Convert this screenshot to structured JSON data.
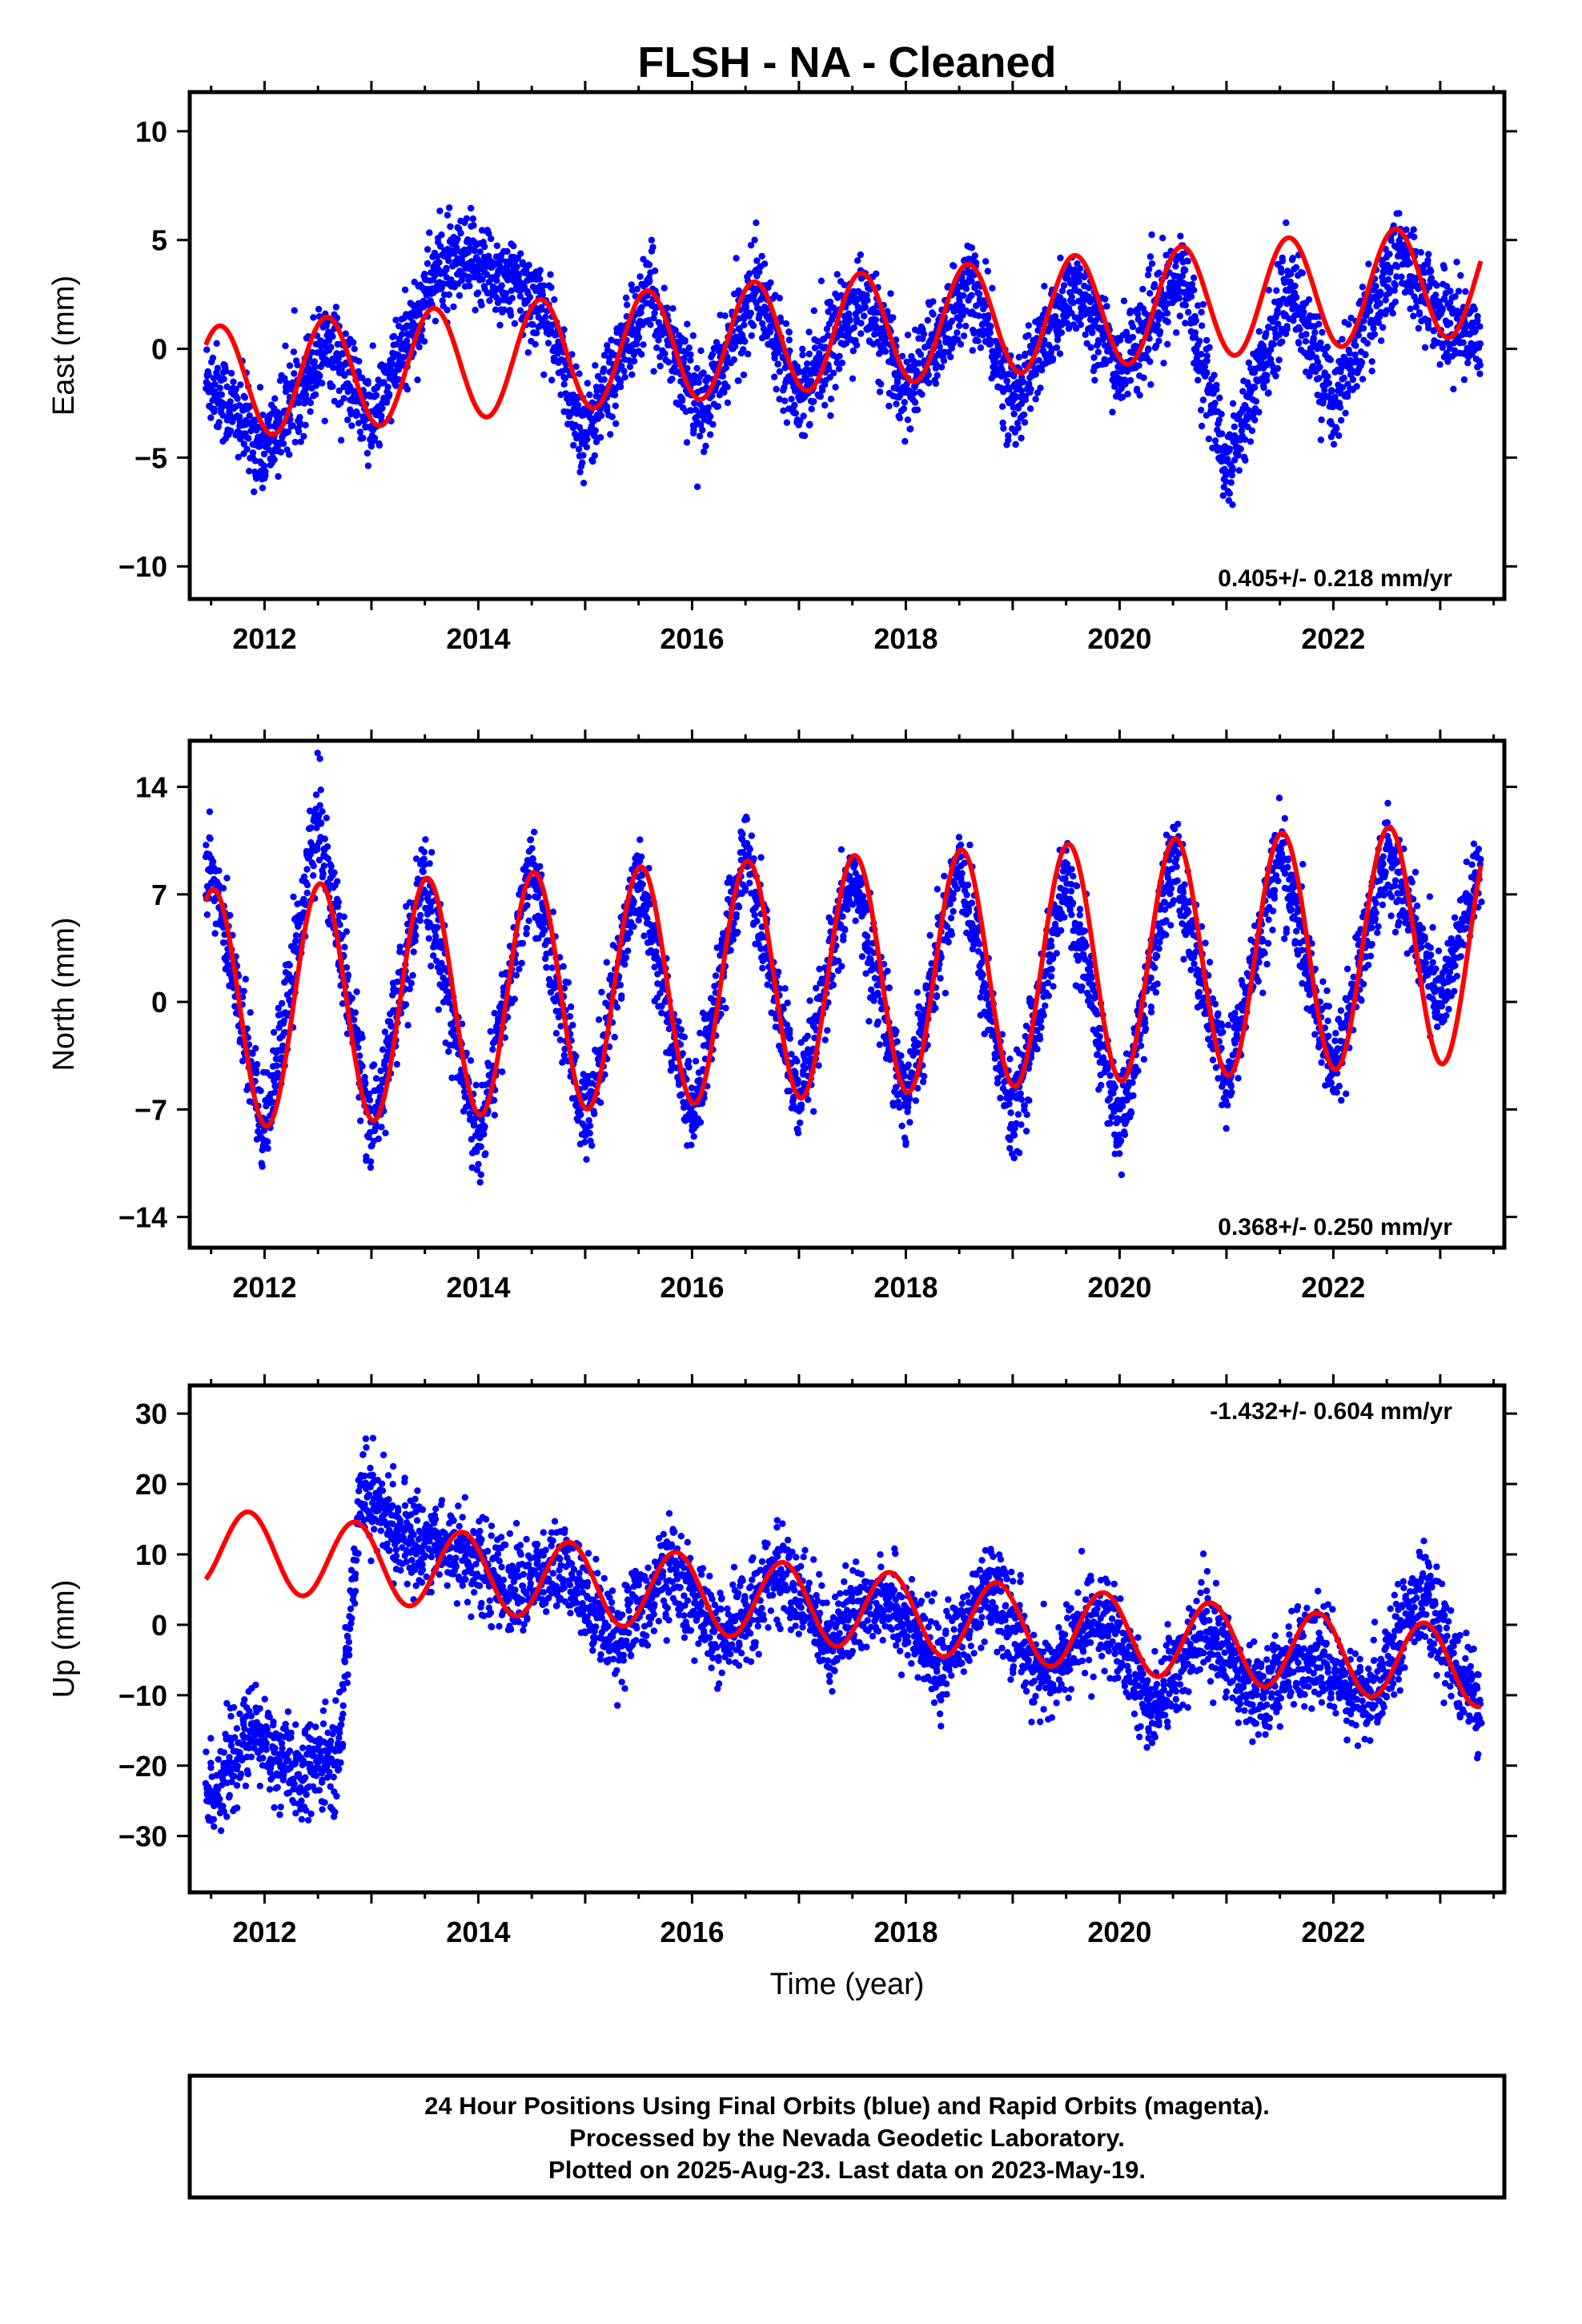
{
  "title": "FLSH  - NA - Cleaned",
  "footer": {
    "lines": [
      "24 Hour Positions Using Final Orbits (blue) and Rapid Orbits (magenta).",
      "Processed by the Nevada Geodetic Laboratory.",
      "Plotted on 2025-Aug-23. Last data on 2023-May-19."
    ]
  },
  "colors": {
    "observations": "#0000ff",
    "model": "#ff0000",
    "frame": "#000000"
  },
  "chart_data": [
    {
      "type": "scatter",
      "component": "east",
      "ylabel": "East (mm)",
      "xlabel": "",
      "xlim": [
        2011.3,
        2023.6
      ],
      "ylim": [
        -11.5,
        11.8
      ],
      "x_ticks": [
        "2012",
        "2014",
        "2016",
        "2018",
        "2020",
        "2022"
      ],
      "y_ticks": [
        "10",
        "5",
        "0",
        "−5",
        "−10"
      ],
      "rate_label": "0.405+/- 0.218 mm/yr",
      "grid": false,
      "data_start": 2011.45,
      "data_end": 2023.38,
      "model": {
        "mean_rate_mm_per_yr": 0.405,
        "annual_amplitude_mm": 2.6,
        "peak_phase_year_fraction": 0.58,
        "offset_mm": -1.6,
        "reference_year": 2011.45
      },
      "series": [
        {
          "name": "Final Orbits",
          "color": "#0000ff",
          "trend_points": [
            [
              2011.5,
              -1.5
            ],
            [
              2012.0,
              -4.7
            ],
            [
              2012.6,
              0.5
            ],
            [
              2013.0,
              -3.5
            ],
            [
              2013.6,
              3.5
            ],
            [
              2014.0,
              4.0
            ],
            [
              2014.6,
              2.0
            ],
            [
              2015.0,
              -4.0
            ],
            [
              2015.6,
              2.5
            ],
            [
              2016.1,
              -3.0
            ],
            [
              2016.6,
              3.0
            ],
            [
              2017.0,
              -2.0
            ],
            [
              2017.6,
              2.5
            ],
            [
              2018.0,
              -2.0
            ],
            [
              2018.6,
              3.0
            ],
            [
              2019.0,
              -2.5
            ],
            [
              2019.6,
              3.0
            ],
            [
              2020.0,
              -1.0
            ],
            [
              2020.6,
              3.5
            ],
            [
              2021.0,
              -5.5
            ],
            [
              2021.6,
              3.0
            ],
            [
              2022.0,
              -2.5
            ],
            [
              2022.6,
              4.5
            ],
            [
              2023.0,
              1.5
            ],
            [
              2023.35,
              0.5
            ]
          ]
        }
      ]
    },
    {
      "type": "scatter",
      "component": "north",
      "ylabel": "North (mm)",
      "xlabel": "",
      "xlim": [
        2011.3,
        2023.6
      ],
      "ylim": [
        -16,
        17
      ],
      "x_ticks": [
        "2012",
        "2014",
        "2016",
        "2018",
        "2020",
        "2022"
      ],
      "y_ticks": [
        "14",
        "7",
        "0",
        "−7",
        "−14"
      ],
      "rate_label": "0.368+/- 0.250 mm/yr",
      "grid": false,
      "data_start": 2011.45,
      "data_end": 2023.38,
      "model": {
        "mean_rate_mm_per_yr": 0.368,
        "annual_amplitude_mm": 7.8,
        "peak_phase_year_fraction": 0.52,
        "offset_mm": -0.5,
        "reference_year": 2011.45
      },
      "series": [
        {
          "name": "Final Orbits",
          "color": "#0000ff",
          "trend_points": [
            [
              2011.5,
              9.0
            ],
            [
              2012.0,
              -8.5
            ],
            [
              2012.5,
              12.0
            ],
            [
              2013.0,
              -8.5
            ],
            [
              2013.5,
              8.0
            ],
            [
              2014.0,
              -9.5
            ],
            [
              2014.5,
              9.0
            ],
            [
              2015.0,
              -8.0
            ],
            [
              2015.5,
              8.5
            ],
            [
              2016.0,
              -8.0
            ],
            [
              2016.5,
              10.0
            ],
            [
              2017.0,
              -7.0
            ],
            [
              2017.5,
              8.5
            ],
            [
              2018.0,
              -6.5
            ],
            [
              2018.5,
              9.5
            ],
            [
              2019.0,
              -8.0
            ],
            [
              2019.5,
              8.0
            ],
            [
              2020.0,
              -8.5
            ],
            [
              2020.5,
              9.5
            ],
            [
              2021.0,
              -5.5
            ],
            [
              2021.5,
              10.0
            ],
            [
              2022.0,
              -5.0
            ],
            [
              2022.5,
              10.0
            ],
            [
              2023.0,
              0.0
            ],
            [
              2023.35,
              8.0
            ]
          ]
        }
      ]
    },
    {
      "type": "scatter",
      "component": "up",
      "ylabel": "Up (mm)",
      "xlabel": "Time (year)",
      "xlim": [
        2011.3,
        2023.6
      ],
      "ylim": [
        -38,
        34
      ],
      "x_ticks": [
        "2012",
        "2014",
        "2016",
        "2018",
        "2020",
        "2022"
      ],
      "y_ticks": [
        "30",
        "20",
        "10",
        "0",
        "−10",
        "−20",
        "−30"
      ],
      "rate_label": "-1.432+/- 0.604 mm/yr",
      "grid": false,
      "data_start": 2011.45,
      "data_end": 2023.38,
      "model": {
        "mean_rate_mm_per_yr": -1.432,
        "annual_amplitude_mm": 5.6,
        "peak_phase_year_fraction": 0.85,
        "offset_mm": 11.0,
        "reference_year": 2011.45
      },
      "series": [
        {
          "name": "Final Orbits",
          "color": "#0000ff",
          "trend_points": [
            [
              2011.5,
              -24.0
            ],
            [
              2011.9,
              -15.0
            ],
            [
              2012.3,
              -22.0
            ],
            [
              2012.7,
              -18.0
            ],
            [
              2012.9,
              20.0
            ],
            [
              2013.3,
              12.0
            ],
            [
              2013.8,
              11.0
            ],
            [
              2014.3,
              5.0
            ],
            [
              2014.8,
              8.0
            ],
            [
              2015.3,
              -2.0
            ],
            [
              2015.8,
              8.0
            ],
            [
              2016.3,
              -3.0
            ],
            [
              2016.8,
              8.0
            ],
            [
              2017.3,
              -2.0
            ],
            [
              2017.8,
              5.0
            ],
            [
              2018.3,
              -6.0
            ],
            [
              2018.8,
              5.0
            ],
            [
              2019.3,
              -8.0
            ],
            [
              2019.8,
              2.0
            ],
            [
              2020.3,
              -12.0
            ],
            [
              2020.8,
              0.0
            ],
            [
              2021.3,
              -10.0
            ],
            [
              2021.8,
              -3.0
            ],
            [
              2022.3,
              -12.0
            ],
            [
              2022.8,
              5.0
            ],
            [
              2023.35,
              -12.0
            ]
          ]
        }
      ]
    }
  ]
}
